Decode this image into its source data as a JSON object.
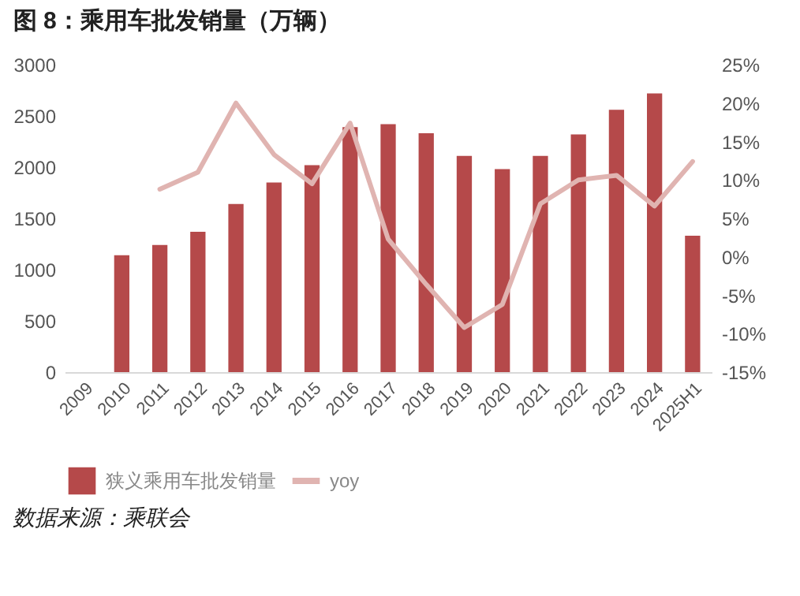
{
  "chart_data": {
    "type": "bar",
    "title": "图 8：乘用车批发销量（万辆）",
    "categories": [
      "2009",
      "2010",
      "2011",
      "2012",
      "2013",
      "2014",
      "2015",
      "2016",
      "2017",
      "2018",
      "2019",
      "2020",
      "2021",
      "2022",
      "2023",
      "2024",
      "2025H1"
    ],
    "series": [
      {
        "name": "狭义乘用车批发销量",
        "color": "#b5494a",
        "values": [
          null,
          1140,
          1240,
          1370,
          1640,
          1850,
          2020,
          2390,
          2420,
          2330,
          2110,
          1980,
          2110,
          2320,
          2560,
          2720,
          1330
        ]
      },
      {
        "name": "yoy",
        "type": "line",
        "axis": "y2",
        "color": "#e0b4b1",
        "values": [
          null,
          null,
          8.8,
          11.0,
          20.0,
          13.3,
          9.5,
          17.4,
          2.3,
          -3.6,
          -9.2,
          -6.2,
          6.9,
          10.0,
          10.6,
          6.6,
          12.4
        ]
      }
    ],
    "ylim": [
      0,
      3000
    ],
    "yticks": [
      0,
      500,
      1000,
      1500,
      2000,
      2500,
      3000
    ],
    "y2lim": [
      -15,
      25
    ],
    "y2ticks": [
      {
        "value": -15,
        "label": "-15%"
      },
      {
        "value": -10,
        "label": "-10%"
      },
      {
        "value": -5,
        "label": "-5%"
      },
      {
        "value": 0,
        "label": "0%"
      },
      {
        "value": 5,
        "label": "5%"
      },
      {
        "value": 10,
        "label": "10%"
      },
      {
        "value": 15,
        "label": "15%"
      },
      {
        "value": 20,
        "label": "20%"
      },
      {
        "value": 25,
        "label": "25%"
      }
    ],
    "legend": "bottom",
    "annotations": [
      "数据来源：乘联会"
    ]
  }
}
